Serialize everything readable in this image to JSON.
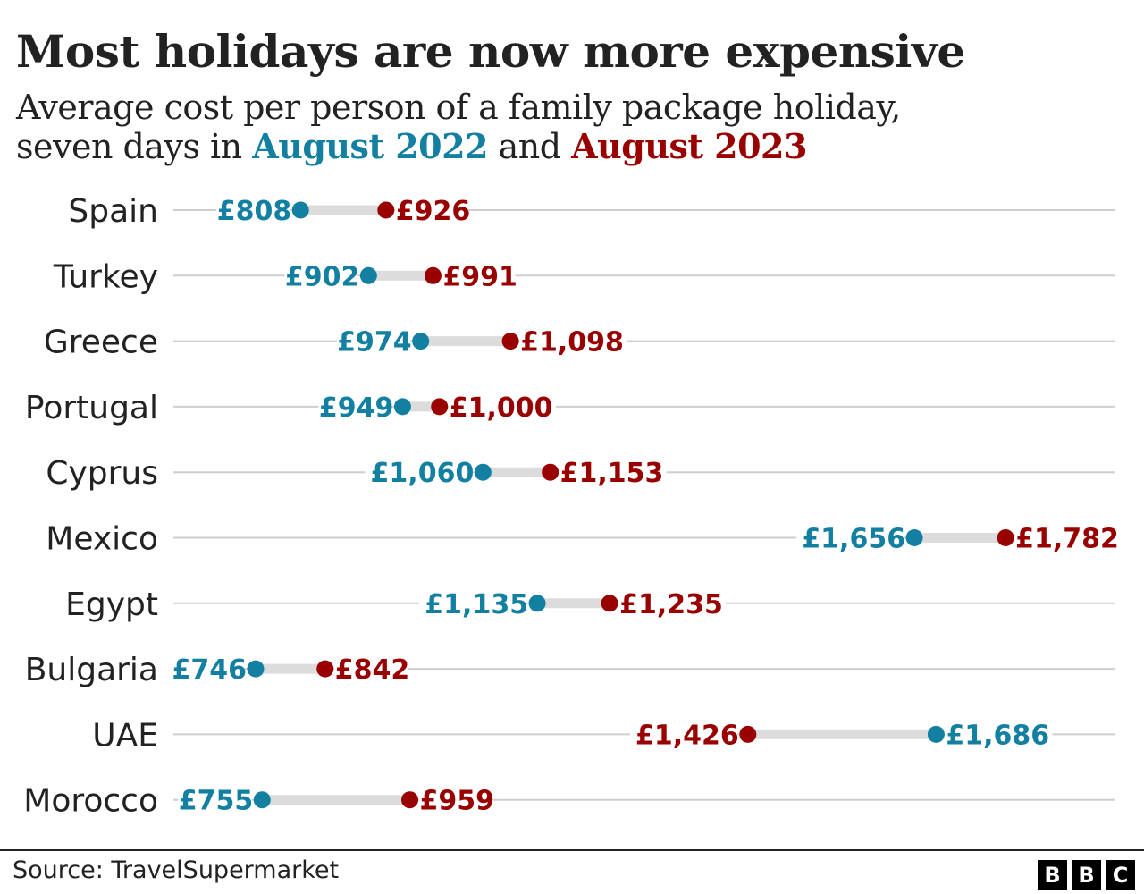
{
  "chart_data": {
    "type": "dumbbell",
    "title": "Most holidays are now more expensive",
    "subtitle_prefix": "Average cost per person of a family package holiday,",
    "subtitle_line2": "seven days in",
    "subtitle_and": "and",
    "categories": [
      "Spain",
      "Turkey",
      "Greece",
      "Portugal",
      "Cyprus",
      "Mexico",
      "Egypt",
      "Bulgaria",
      "UAE",
      "Morocco"
    ],
    "series": [
      {
        "name": "August 2022",
        "color": "#1380a1",
        "values": [
          808,
          902,
          974,
          949,
          1060,
          1656,
          1135,
          746,
          1686,
          755
        ],
        "labels": [
          "£808",
          "£902",
          "£974",
          "£949",
          "£1,060",
          "£1,656",
          "£1,135",
          "£746",
          "£1,686",
          "£755"
        ]
      },
      {
        "name": "August 2023",
        "color": "#990000",
        "values": [
          926,
          991,
          1098,
          1000,
          1153,
          1782,
          1235,
          842,
          1426,
          959
        ],
        "labels": [
          "£926",
          "£991",
          "£1,098",
          "£1,000",
          "£1,153",
          "£1,782",
          "£1,235",
          "£842",
          "£1,426",
          "£959"
        ]
      }
    ],
    "unit": "£",
    "grid": true
  },
  "footer": {
    "source": "Source: TravelSupermarket",
    "logo": [
      "B",
      "B",
      "C"
    ]
  }
}
